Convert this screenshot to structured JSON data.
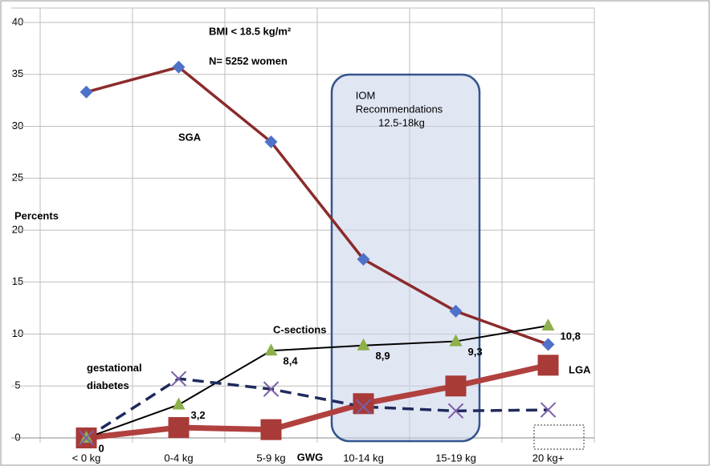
{
  "chart_data": {
    "type": "line",
    "annotations": [
      "BMI < 18.5 kg/m²",
      "N= 5252 women"
    ],
    "ylabel": "Percents",
    "xlabel": "GWG",
    "box_label": [
      "IOM",
      "Recommendations",
      "12.5-18kg"
    ],
    "categories": [
      "< 0 kg",
      "0-4 kg",
      "5-9 kg",
      "10-14 kg",
      "15-19 kg",
      "20 kg+"
    ],
    "series": [
      {
        "name": "SGA",
        "color": "#8b2b2b",
        "marker_color": "#4f72c8",
        "marker": "diamond",
        "dashed": false,
        "values": [
          33.3,
          35.7,
          28.5,
          17.2,
          12.2,
          9.0
        ]
      },
      {
        "name": "LGA",
        "color": "#b0413e",
        "marker_color": "#a83a38",
        "marker": "square",
        "dashed": false,
        "values": [
          0,
          1.0,
          0.8,
          3.3,
          5.0,
          7.0
        ]
      },
      {
        "name": "C-sections",
        "color": "#000000",
        "marker_color": "#8db04a",
        "marker": "triangle",
        "dashed": false,
        "values": [
          0,
          3.2,
          8.4,
          8.9,
          9.3,
          10.8
        ],
        "value_labels": [
          "0",
          "3,2",
          "8,4",
          "8,9",
          "9,3",
          "10,8"
        ]
      },
      {
        "name": "gestational diabetes",
        "color": "#1f2a5c",
        "marker_color": "#7b5fa8",
        "marker": "x",
        "dashed": true,
        "values": [
          0,
          5.7,
          4.7,
          3.0,
          2.6,
          2.7
        ]
      }
    ],
    "ylim": [
      0,
      40
    ],
    "yticks": [
      0,
      5,
      10,
      15,
      20,
      25,
      30,
      35,
      40
    ],
    "grid": true
  }
}
